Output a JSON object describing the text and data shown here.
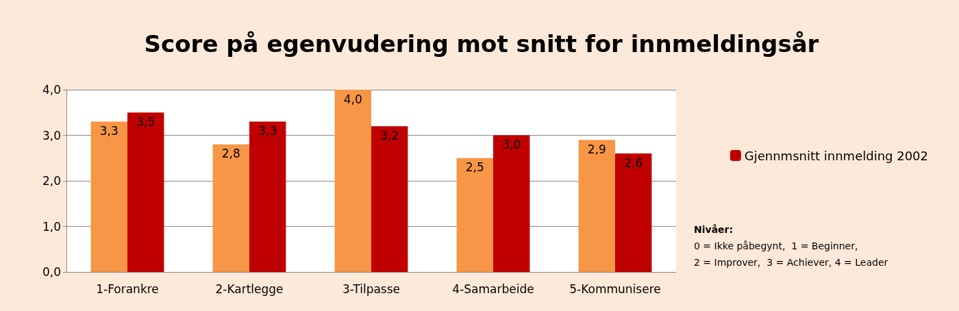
{
  "chart_data": {
    "type": "bar",
    "title": "Score på egenvudering mot snitt for innmeldingsår",
    "categories": [
      "1-Forankre",
      "2-Kartlegge",
      "3-Tilpasse",
      "4-Samarbeide",
      "5-Kommunisere"
    ],
    "series": [
      {
        "color": "#f79646",
        "values": [
          3.3,
          2.8,
          4.0,
          2.5,
          2.9
        ],
        "value_labels": [
          "3,3",
          "2,8",
          "4,0",
          "2,5",
          "2,9"
        ]
      },
      {
        "name": "Gjennmsnitt innmelding 2002",
        "color": "#c00000",
        "values": [
          3.5,
          3.3,
          3.2,
          3.0,
          2.6
        ],
        "value_labels": [
          "3,5",
          "3,3",
          "3,2",
          "3,0",
          "2,6"
        ]
      }
    ],
    "ylim": [
      0,
      4
    ],
    "yticks": [
      {
        "value": 0,
        "label": "0,0"
      },
      {
        "value": 1,
        "label": "1,0"
      },
      {
        "value": 2,
        "label": "2,0"
      },
      {
        "value": 3,
        "label": "3,0"
      },
      {
        "value": 4,
        "label": "4,0"
      }
    ],
    "grid": "y",
    "legend": "right",
    "annotations": [
      "Nivåer:",
      "0 = Ikke påbegynt,  1 = Beginner,",
      "2 = Improver,  3 = Achiever, 4 = Leader"
    ]
  }
}
